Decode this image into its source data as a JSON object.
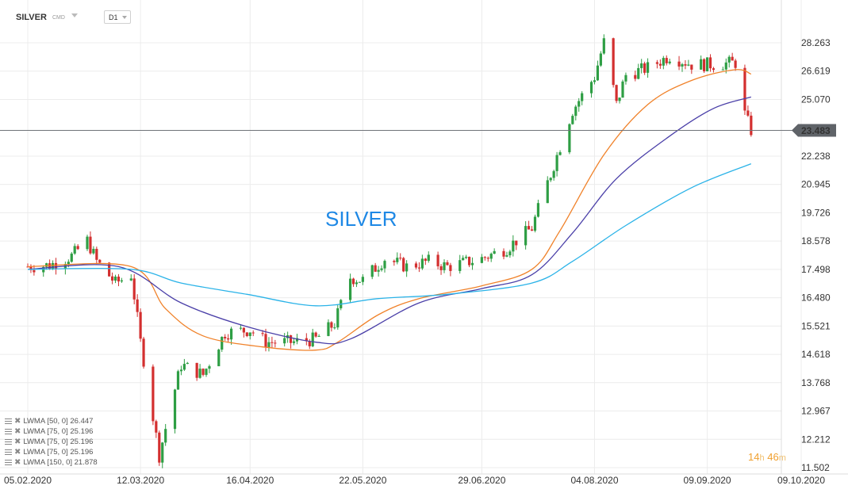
{
  "header": {
    "symbol": "SILVER",
    "symbol_type": "CMD",
    "timeframe": "D1"
  },
  "countdown": {
    "hours": "14",
    "hours_unit": "h",
    "minutes": "46",
    "minutes_unit": "m"
  },
  "colors": {
    "up": "#2e9e44",
    "down": "#d32f2f",
    "lwma50": "#f0822a",
    "lwma75": "#4a3fa8",
    "lwma150": "#2bb3e8",
    "price_label_bg": "#5f6368",
    "watermark": "#1e88e5"
  },
  "legend": [
    {
      "label": "LWMA [50,  0]",
      "value": "26.447"
    },
    {
      "label": "LWMA [75,  0]",
      "value": "25.196"
    },
    {
      "label": "LWMA [75,  0]",
      "value": "25.196"
    },
    {
      "label": "LWMA [75,  0]",
      "value": "25.196"
    },
    {
      "label": "LWMA [150,  0]",
      "value": "21.878"
    }
  ],
  "chart_data": {
    "type": "candlestick",
    "title": "SILVER",
    "y_ticks": [
      "28.263",
      "26.619",
      "25.070",
      "23.483",
      "22.238",
      "20.945",
      "19.726",
      "18.578",
      "17.498",
      "16.480",
      "15.521",
      "14.618",
      "13.768",
      "12.967",
      "12.212",
      "11.502"
    ],
    "x_ticks": [
      "05.02.2020",
      "12.03.2020",
      "16.04.2020",
      "22.05.2020",
      "29.06.2020",
      "04.08.2020",
      "09.09.2020",
      "09.10.2020"
    ],
    "y_scale": "log",
    "ylim": [
      11.502,
      28.263
    ],
    "x_range": [
      "2020-02-05",
      "2020-10-09"
    ],
    "current_price": "23.483",
    "candle_interval": "1 day",
    "close_path": [
      [
        "2020-02-05",
        17.6
      ],
      [
        "2020-02-12",
        17.65
      ],
      [
        "2020-02-19",
        18.0
      ],
      [
        "2020-02-24",
        18.6
      ],
      [
        "2020-02-27",
        17.8
      ],
      [
        "2020-03-04",
        17.0
      ],
      [
        "2020-03-09",
        17.3
      ],
      [
        "2020-03-12",
        15.0
      ],
      [
        "2020-03-16",
        12.8
      ],
      [
        "2020-03-18",
        11.8
      ],
      [
        "2020-03-20",
        12.5
      ],
      [
        "2020-03-25",
        14.3
      ],
      [
        "2020-04-01",
        14.0
      ],
      [
        "2020-04-08",
        15.3
      ],
      [
        "2020-04-16",
        15.4
      ],
      [
        "2020-04-21",
        15.0
      ],
      [
        "2020-04-30",
        15.0
      ],
      [
        "2020-05-07",
        15.1
      ],
      [
        "2020-05-13",
        15.6
      ],
      [
        "2020-05-18",
        17.2
      ],
      [
        "2020-05-22",
        17.1
      ],
      [
        "2020-05-29",
        17.9
      ],
      [
        "2020-06-05",
        17.6
      ],
      [
        "2020-06-12",
        17.8
      ],
      [
        "2020-06-18",
        17.6
      ],
      [
        "2020-06-29",
        17.9
      ],
      [
        "2020-07-07",
        18.3
      ],
      [
        "2020-07-15",
        19.1
      ],
      [
        "2020-07-21",
        21.4
      ],
      [
        "2020-07-24",
        22.7
      ],
      [
        "2020-07-28",
        24.5
      ],
      [
        "2020-08-04",
        26.3
      ],
      [
        "2020-08-07",
        28.3
      ],
      [
        "2020-08-11",
        24.8
      ],
      [
        "2020-08-14",
        26.4
      ],
      [
        "2020-08-21",
        26.8
      ],
      [
        "2020-08-28",
        27.5
      ],
      [
        "2020-09-04",
        27.0
      ],
      [
        "2020-09-11",
        27.0
      ],
      [
        "2020-09-18",
        27.1
      ],
      [
        "2020-09-21",
        24.3
      ],
      [
        "2020-09-23",
        23.48
      ]
    ],
    "series": [
      {
        "name": "LWMA [50,  0]",
        "color": "#f0822a",
        "points": [
          [
            "2020-02-05",
            17.6
          ],
          [
            "2020-03-09",
            17.6
          ],
          [
            "2020-03-20",
            16.1
          ],
          [
            "2020-04-01",
            15.2
          ],
          [
            "2020-04-20",
            14.85
          ],
          [
            "2020-05-07",
            14.75
          ],
          [
            "2020-05-14",
            15.0
          ],
          [
            "2020-05-27",
            15.9
          ],
          [
            "2020-06-09",
            16.45
          ],
          [
            "2020-06-29",
            16.9
          ],
          [
            "2020-07-15",
            17.5
          ],
          [
            "2020-07-24",
            19.0
          ],
          [
            "2020-08-07",
            22.3
          ],
          [
            "2020-08-21",
            24.8
          ],
          [
            "2020-09-04",
            26.1
          ],
          [
            "2020-09-18",
            26.7
          ],
          [
            "2020-09-23",
            26.45
          ]
        ]
      },
      {
        "name": "LWMA [75,  0]",
        "color": "#4a3fa8",
        "points": [
          [
            "2020-02-05",
            17.5
          ],
          [
            "2020-03-05",
            17.6
          ],
          [
            "2020-03-25",
            16.3
          ],
          [
            "2020-04-15",
            15.5
          ],
          [
            "2020-05-07",
            15.0
          ],
          [
            "2020-05-18",
            15.1
          ],
          [
            "2020-06-09",
            16.3
          ],
          [
            "2020-06-29",
            16.8
          ],
          [
            "2020-07-15",
            17.3
          ],
          [
            "2020-07-28",
            18.9
          ],
          [
            "2020-08-11",
            21.2
          ],
          [
            "2020-08-28",
            23.2
          ],
          [
            "2020-09-11",
            24.6
          ],
          [
            "2020-09-23",
            25.2
          ]
        ]
      },
      {
        "name": "LWMA [150,  0]",
        "color": "#2bb3e8",
        "points": [
          [
            "2020-02-05",
            17.5
          ],
          [
            "2020-03-09",
            17.5
          ],
          [
            "2020-03-25",
            17.0
          ],
          [
            "2020-04-15",
            16.6
          ],
          [
            "2020-05-07",
            16.2
          ],
          [
            "2020-05-27",
            16.45
          ],
          [
            "2020-06-18",
            16.6
          ],
          [
            "2020-07-15",
            17.0
          ],
          [
            "2020-07-28",
            17.8
          ],
          [
            "2020-08-14",
            19.2
          ],
          [
            "2020-09-04",
            20.8
          ],
          [
            "2020-09-23",
            21.88
          ]
        ]
      }
    ]
  }
}
